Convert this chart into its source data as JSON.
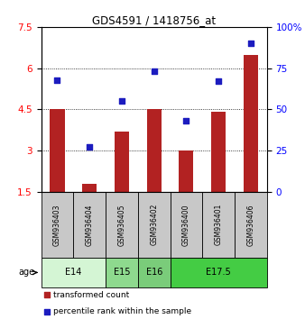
{
  "title": "GDS4591 / 1418756_at",
  "samples": [
    "GSM936403",
    "GSM936404",
    "GSM936405",
    "GSM936402",
    "GSM936400",
    "GSM936401",
    "GSM936406"
  ],
  "transformed_count": [
    4.5,
    1.8,
    3.7,
    4.5,
    3.0,
    4.4,
    6.5
  ],
  "percentile_rank": [
    68,
    27,
    55,
    73,
    43,
    67,
    90
  ],
  "left_ylim": [
    1.5,
    7.5
  ],
  "left_yticks": [
    1.5,
    3.0,
    4.5,
    6.0,
    7.5
  ],
  "left_yticklabels": [
    "1.5",
    "3",
    "4.5",
    "6",
    "7.5"
  ],
  "right_ylim": [
    0,
    100
  ],
  "right_yticks": [
    0,
    25,
    50,
    75,
    100
  ],
  "right_yticklabels": [
    "0",
    "25",
    "50",
    "75",
    "100%"
  ],
  "bar_color": "#b22222",
  "dot_color": "#1c1cbf",
  "bar_bottom": 1.5,
  "sample_bg_color": "#c8c8c8",
  "age_row": [
    {
      "label": "E14",
      "start": 0,
      "end": 1,
      "color": "#d4f5d4"
    },
    {
      "label": "E15",
      "start": 2,
      "end": 2,
      "color": "#8ed98e"
    },
    {
      "label": "E16",
      "start": 3,
      "end": 3,
      "color": "#7acc7a"
    },
    {
      "label": "E17.5",
      "start": 4,
      "end": 6,
      "color": "#44cc44"
    }
  ],
  "legend_bar_label": "transformed count",
  "legend_dot_label": "percentile rank within the sample",
  "gridline_yticks": [
    3.0,
    4.5,
    6.0
  ]
}
